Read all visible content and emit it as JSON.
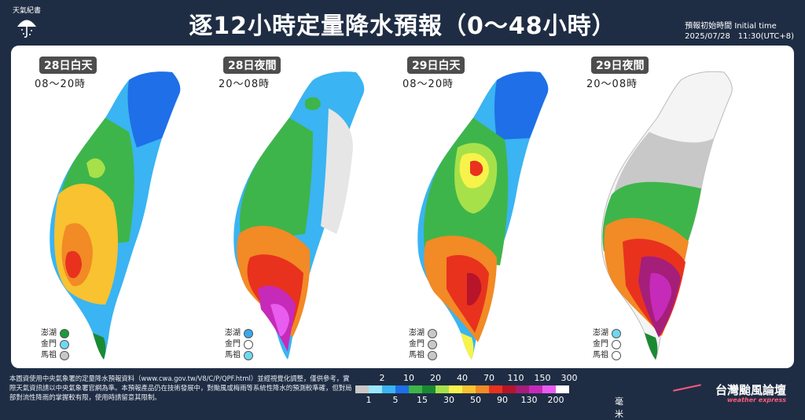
{
  "header": {
    "logo_text": "天氣紀書",
    "title": "逐12小時定量降水預報（0～48小時）",
    "initial_time_label": "預報初始時間 Initial time",
    "initial_time_value": "2025/07/28　11:30(UTC+8)"
  },
  "maps": [
    {
      "day_label": "28日白天",
      "time_range": "08～20時",
      "islands": [
        {
          "name": "澎湖",
          "color": "#1a9a3a"
        },
        {
          "name": "金門",
          "color": "#6fd8f0"
        },
        {
          "name": "馬祖",
          "color": "#c8c8c8"
        }
      ]
    },
    {
      "day_label": "28日夜間",
      "time_range": "20～08時",
      "islands": [
        {
          "name": "澎湖",
          "color": "#3aa8ef"
        },
        {
          "name": "金門",
          "color": "#ffffff"
        },
        {
          "name": "馬祖",
          "color": "#6fd8f0"
        }
      ]
    },
    {
      "day_label": "29日白天",
      "time_range": "08～20時",
      "islands": [
        {
          "name": "澎湖",
          "color": "#c8c8c8"
        },
        {
          "name": "金門",
          "color": "#c8c8c8"
        },
        {
          "name": "馬祖",
          "color": "#c8c8c8"
        }
      ]
    },
    {
      "day_label": "29日夜間",
      "time_range": "20～08時",
      "islands": [
        {
          "name": "澎湖",
          "color": "#6fd8f0"
        },
        {
          "name": "金門",
          "color": "#ffffff"
        },
        {
          "name": "馬祖",
          "color": "#ffffff"
        }
      ]
    }
  ],
  "footer": {
    "disclaimer": "本圖資使用中央氣象署的定量降水預報資料（www.cwa.gov.tw/V8/C/P/QPF.html）並經視覺化調整，僅供參考，實際天氣資訊請以中央氣象署官網為準。本預報產品仍在技術發展中，對颱風或梅雨等系統性降水的預測較準確，但對局部對流性降雨的掌握較有限，使用時請留意其限制。",
    "brand": "台灣颱風論壇",
    "brand_sub": "weather express"
  },
  "legend": {
    "top_values": [
      "2",
      "10",
      "20",
      "40",
      "70",
      "110",
      "150",
      "300"
    ],
    "bottom_values": [
      "1",
      "5",
      "15",
      "30",
      "50",
      "90",
      "130",
      "200"
    ],
    "unit": "毫米",
    "colors": [
      "#c8c8c8",
      "#9be7ff",
      "#3ab4f2",
      "#1f6fe8",
      "#3eb54a",
      "#1a8a32",
      "#a7e14a",
      "#f7f34a",
      "#f8c230",
      "#f28a25",
      "#e8321e",
      "#b8142a",
      "#a51e7a",
      "#c62ab9",
      "#e95cf0",
      "#ffffff"
    ]
  }
}
